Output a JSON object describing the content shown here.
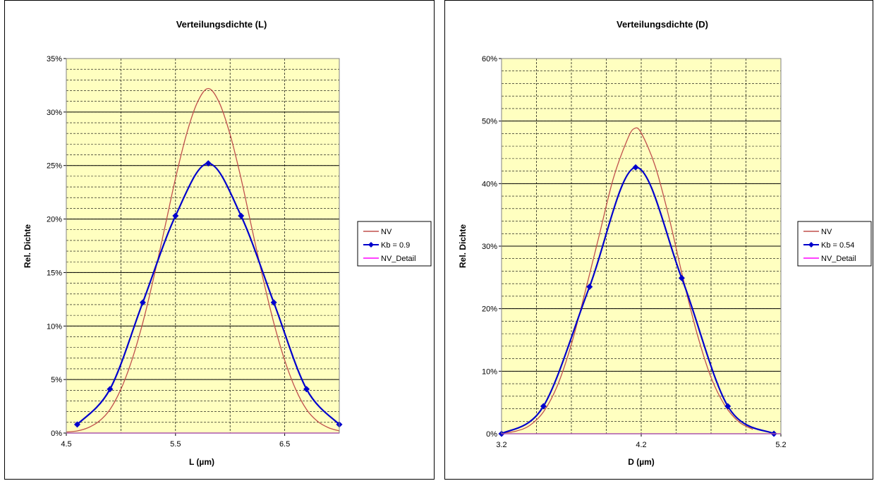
{
  "chart_data": [
    {
      "type": "line",
      "title": "Verteilungsdichte  (L)",
      "xlabel": "L (µm)",
      "ylabel": "Rel. Dichte",
      "xlim": [
        4.5,
        7.0
      ],
      "ylim": [
        0,
        0.35
      ],
      "x_ticks": [
        "4.5",
        "5.5",
        "6.5"
      ],
      "x_tick_values": [
        4.5,
        5.5,
        6.5
      ],
      "y_ticks": [
        "0%",
        "5%",
        "10%",
        "15%",
        "20%",
        "25%",
        "30%",
        "35%"
      ],
      "y_tick_values": [
        0,
        0.05,
        0.1,
        0.15,
        0.2,
        0.25,
        0.3,
        0.35
      ],
      "grid": true,
      "plot_background": "#FFFFC0",
      "legend_position": "right",
      "series": [
        {
          "name": "NV",
          "color": "#C0504D",
          "marker": "none",
          "smooth": true,
          "x": [
            4.5,
            4.6,
            4.7,
            4.8,
            4.9,
            5.0,
            5.1,
            5.2,
            5.3,
            5.4,
            5.5,
            5.6,
            5.7,
            5.8,
            5.9,
            6.0,
            6.1,
            6.2,
            6.3,
            6.4,
            6.5,
            6.6,
            6.7,
            6.8,
            6.9,
            7.0
          ],
          "values": [
            0.001,
            0.002,
            0.005,
            0.011,
            0.022,
            0.041,
            0.068,
            0.103,
            0.145,
            0.191,
            0.238,
            0.279,
            0.309,
            0.322,
            0.309,
            0.279,
            0.238,
            0.191,
            0.145,
            0.103,
            0.068,
            0.041,
            0.022,
            0.011,
            0.005,
            0.002
          ]
        },
        {
          "name": "Kb = 0.9",
          "color": "#0000CC",
          "marker": "diamond",
          "smooth": true,
          "x": [
            4.6,
            4.9,
            5.2,
            5.5,
            5.8,
            6.1,
            6.4,
            6.7,
            7.0
          ],
          "values": [
            0.008,
            0.041,
            0.122,
            0.203,
            0.252,
            0.203,
            0.122,
            0.041,
            0.008
          ]
        },
        {
          "name": "NV_Detail",
          "color": "#FF00FF",
          "marker": "none",
          "smooth": false,
          "x": [
            4.5,
            7.0
          ],
          "values": [
            0,
            0
          ]
        }
      ]
    },
    {
      "type": "line",
      "title": "Verteilungsdichte  (D)",
      "xlabel": "D (µm)",
      "ylabel": "Rel. Dichte",
      "xlim": [
        3.2,
        5.2
      ],
      "ylim": [
        0,
        0.6
      ],
      "x_ticks": [
        "3.2",
        "4.2",
        "5.2"
      ],
      "x_tick_values": [
        3.2,
        4.2,
        5.2
      ],
      "y_ticks": [
        "0%",
        "10%",
        "20%",
        "30%",
        "40%",
        "50%",
        "60%"
      ],
      "y_tick_values": [
        0,
        0.1,
        0.2,
        0.3,
        0.4,
        0.5,
        0.6
      ],
      "grid": true,
      "plot_background": "#FFFFC0",
      "legend_position": "right",
      "series": [
        {
          "name": "NV",
          "color": "#C0504D",
          "marker": "none",
          "smooth": true,
          "x": [
            3.2,
            3.3,
            3.4,
            3.5,
            3.6,
            3.7,
            3.8,
            3.9,
            4.0,
            4.1,
            4.15,
            4.2,
            4.3,
            4.4,
            4.5,
            4.6,
            4.7,
            4.8,
            4.9,
            5.0
          ],
          "values": [
            0.001,
            0.004,
            0.013,
            0.035,
            0.077,
            0.143,
            0.228,
            0.318,
            0.408,
            0.47,
            0.488,
            0.481,
            0.428,
            0.345,
            0.248,
            0.16,
            0.09,
            0.045,
            0.019,
            0.007
          ]
        },
        {
          "name": "Kb = 0.54",
          "color": "#0000CC",
          "marker": "diamond",
          "smooth": true,
          "x": [
            3.2,
            3.5,
            3.83,
            4.16,
            4.49,
            4.82,
            5.15
          ],
          "values": [
            0,
            0.044,
            0.235,
            0.426,
            0.249,
            0.044,
            0
          ]
        },
        {
          "name": "NV_Detail",
          "color": "#FF00FF",
          "marker": "none",
          "smooth": false,
          "x": [
            3.2,
            5.2
          ],
          "values": [
            0,
            0
          ]
        }
      ]
    }
  ]
}
